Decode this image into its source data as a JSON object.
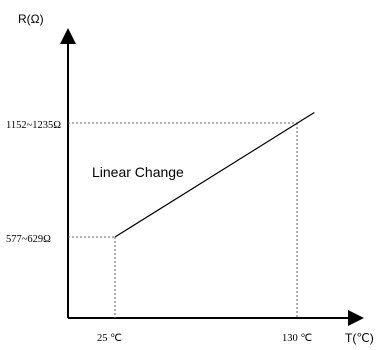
{
  "chart_data": {
    "type": "line",
    "title": "",
    "xlabel": "T(℃)",
    "ylabel": "R(Ω)",
    "x_ticks": [
      {
        "value": 25,
        "label": "25 ℃"
      },
      {
        "value": 130,
        "label": "130 ℃"
      }
    ],
    "y_ticks": [
      {
        "value": 603,
        "label": "577~629Ω"
      },
      {
        "value": 1193.5,
        "label": "1152~1235Ω"
      }
    ],
    "series": [
      {
        "points": [
          {
            "x": 25,
            "y": 603
          },
          {
            "x": 140,
            "y": 1248
          }
        ]
      }
    ],
    "annotation": "Linear Change",
    "grid": false
  }
}
